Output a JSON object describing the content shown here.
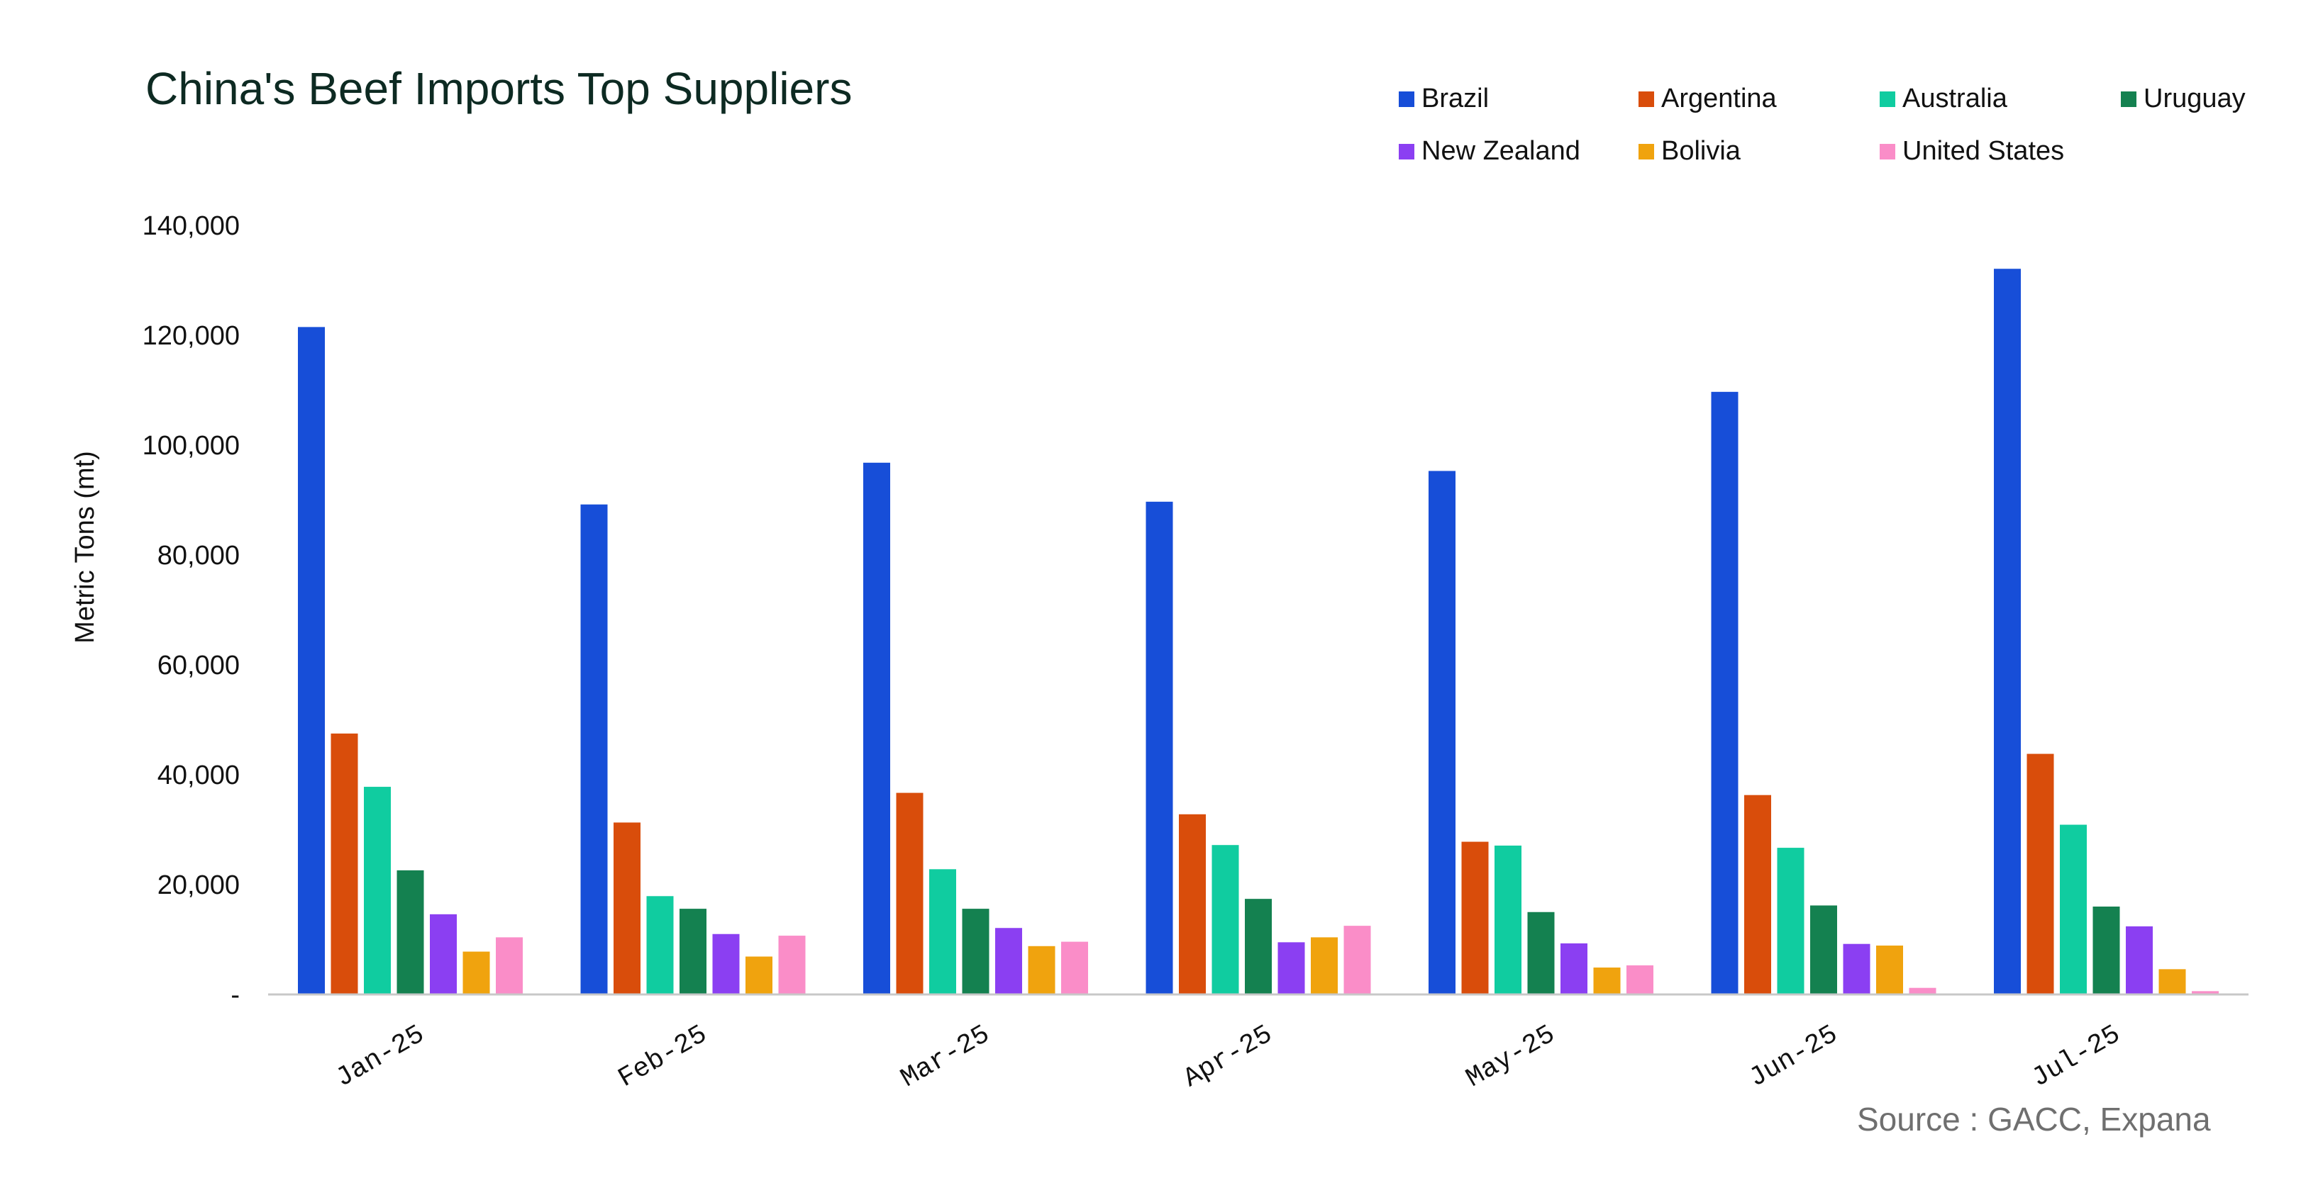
{
  "chart_data": {
    "type": "bar",
    "title": "China's Beef Imports Top Suppliers",
    "ylabel": "Metric Tons (mt)",
    "xlabel": "",
    "ylim": [
      0,
      140000
    ],
    "yticks": [
      0,
      20000,
      40000,
      60000,
      80000,
      100000,
      120000,
      140000
    ],
    "ytick_labels": [
      "-",
      "20,000",
      "40,000",
      "60,000",
      "80,000",
      "100,000",
      "120,000",
      "140,000"
    ],
    "grid": false,
    "legend_position": "top-right",
    "categories": [
      "Jan-25",
      "Feb-25",
      "Mar-25",
      "Apr-25",
      "May-25",
      "Jun-25",
      "Jul-25"
    ],
    "series": [
      {
        "name": "Brazil",
        "color": "#174ed8",
        "values": [
          121500,
          89200,
          96800,
          89700,
          95300,
          109700,
          132100
        ]
      },
      {
        "name": "Argentina",
        "color": "#d94d0b",
        "values": [
          47500,
          31300,
          36700,
          32800,
          27800,
          36300,
          43800
        ]
      },
      {
        "name": "Australia",
        "color": "#10cca0",
        "values": [
          37800,
          17900,
          22800,
          27200,
          27100,
          26700,
          30900
        ]
      },
      {
        "name": "Uruguay",
        "color": "#148150",
        "values": [
          22600,
          15600,
          15600,
          17400,
          15000,
          16200,
          16000
        ]
      },
      {
        "name": "New Zealand",
        "color": "#8b3ff2",
        "values": [
          14600,
          11000,
          12100,
          9500,
          9300,
          9200,
          12400
        ]
      },
      {
        "name": "Bolivia",
        "color": "#f0a30e",
        "values": [
          7800,
          6900,
          8800,
          10400,
          4900,
          8900,
          4600
        ]
      },
      {
        "name": "United States",
        "color": "#fa8dc8",
        "values": [
          10400,
          10700,
          9600,
          12500,
          5300,
          1200,
          600
        ]
      }
    ]
  },
  "source": "Source : GACC, Expana"
}
